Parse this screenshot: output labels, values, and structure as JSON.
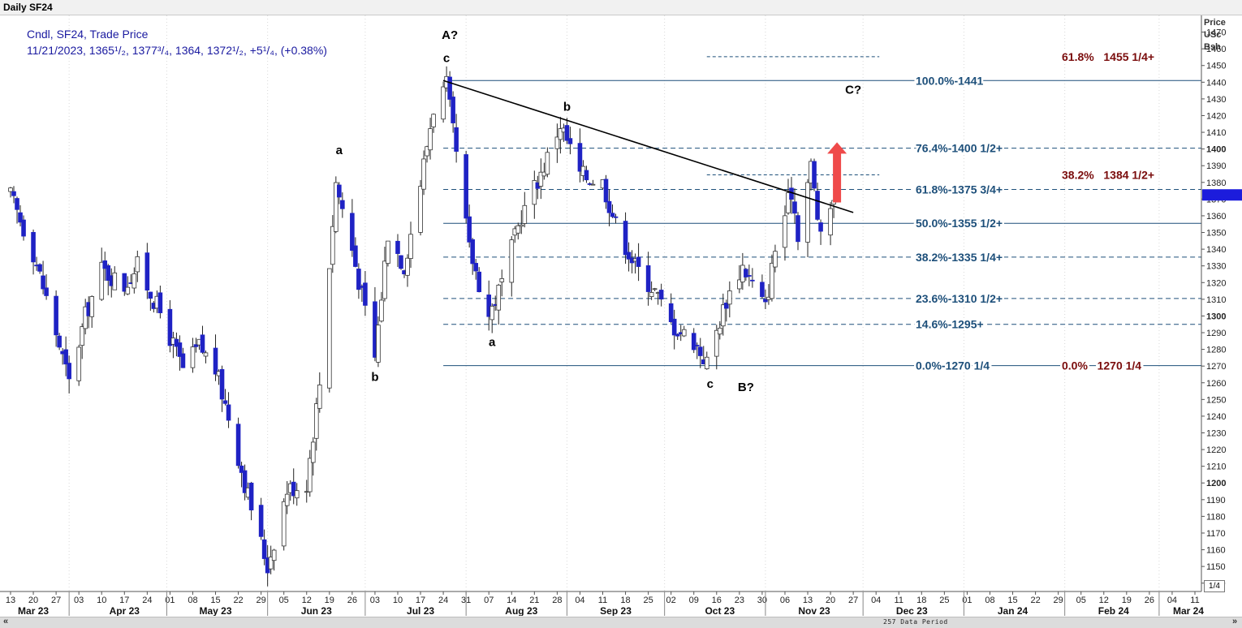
{
  "window": {
    "title": "Daily SF24"
  },
  "footer": {
    "period_label": "257 Data Period",
    "scroll_left": "«",
    "scroll_right": "»",
    "zoom": "1/4"
  },
  "colors": {
    "up_candle": "#ffffff",
    "down_candle": "#1f22c4",
    "fib_line": "#1d4f7a",
    "ext_label": "#7a0c0c",
    "arrow": "#ef4a4a",
    "price_tag": "#1c1cdc"
  },
  "chart_data": {
    "type": "candlestick",
    "legend": {
      "line1": "Cndl, SF24, Trade Price",
      "line2": "11/21/2023, 1365¹/₂, 1377³/₄, 1364, 1372¹/₂, +5¹/₄, (+0.38%)"
    },
    "y_axis": {
      "title": [
        "Price",
        "USc",
        "Bsh"
      ],
      "min": 1135,
      "max": 1480,
      "tick_start": 1140,
      "tick_end": 1470,
      "tick_step": 10,
      "bold_ticks": [
        1200,
        1300,
        1400
      ],
      "last_price_tag": 1372.5
    },
    "x_axis": {
      "start": "2023-03-13",
      "end": "2024-03-11",
      "day_ticks": [
        "13",
        "20",
        "27",
        "03",
        "10",
        "17",
        "24",
        "01",
        "08",
        "15",
        "22",
        "29",
        "05",
        "12",
        "19",
        "26",
        "03",
        "10",
        "17",
        "24",
        "31",
        "07",
        "14",
        "21",
        "28",
        "04",
        "11",
        "18",
        "25",
        "02",
        "09",
        "16",
        "23",
        "30",
        "06",
        "13",
        "20",
        "27",
        "04",
        "11",
        "18",
        "25",
        "01",
        "08",
        "15",
        "22",
        "29",
        "05",
        "12",
        "19",
        "26",
        "04",
        "11"
      ],
      "month_labels": [
        {
          "label": "Mar 23",
          "date": "2023-03-20"
        },
        {
          "label": "Apr 23",
          "date": "2023-04-17"
        },
        {
          "label": "May 23",
          "date": "2023-05-15"
        },
        {
          "label": "Jun 23",
          "date": "2023-06-15"
        },
        {
          "label": "Jul 23",
          "date": "2023-07-17"
        },
        {
          "label": "Aug 23",
          "date": "2023-08-17"
        },
        {
          "label": "Sep 23",
          "date": "2023-09-15"
        },
        {
          "label": "Oct 23",
          "date": "2023-10-17"
        },
        {
          "label": "Nov 23",
          "date": "2023-11-15"
        },
        {
          "label": "Dec 23",
          "date": "2023-12-15"
        },
        {
          "label": "Jan 24",
          "date": "2024-01-15"
        },
        {
          "label": "Feb 24",
          "date": "2024-02-15"
        },
        {
          "label": "Mar 24",
          "date": "2024-03-09"
        }
      ],
      "month_separators": [
        "2023-03-31",
        "2023-04-30",
        "2023-05-31",
        "2023-06-30",
        "2023-07-31",
        "2023-08-31",
        "2023-09-30",
        "2023-10-31",
        "2023-11-30",
        "2023-12-31",
        "2024-01-31",
        "2024-02-29"
      ]
    },
    "price_path": [
      {
        "date": "2023-03-13",
        "p": 1372
      },
      {
        "date": "2023-03-20",
        "p": 1338
      },
      {
        "date": "2023-03-27",
        "p": 1290
      },
      {
        "date": "2023-03-31",
        "p": 1260
      },
      {
        "date": "2023-04-05",
        "p": 1300
      },
      {
        "date": "2023-04-10",
        "p": 1328
      },
      {
        "date": "2023-04-17",
        "p": 1318
      },
      {
        "date": "2023-04-21",
        "p": 1330
      },
      {
        "date": "2023-04-28",
        "p": 1302
      },
      {
        "date": "2023-05-05",
        "p": 1268
      },
      {
        "date": "2023-05-10",
        "p": 1282
      },
      {
        "date": "2023-05-15",
        "p": 1268
      },
      {
        "date": "2023-05-19",
        "p": 1240
      },
      {
        "date": "2023-05-24",
        "p": 1200
      },
      {
        "date": "2023-05-31",
        "p": 1150
      },
      {
        "date": "2023-06-06",
        "p": 1196
      },
      {
        "date": "2023-06-12",
        "p": 1200
      },
      {
        "date": "2023-06-16",
        "p": 1260
      },
      {
        "date": "2023-06-21",
        "p": 1380
      },
      {
        "date": "2023-06-26",
        "p": 1340
      },
      {
        "date": "2023-07-03",
        "p": 1275
      },
      {
        "date": "2023-07-07",
        "p": 1350
      },
      {
        "date": "2023-07-12",
        "p": 1330
      },
      {
        "date": "2023-07-17",
        "p": 1380
      },
      {
        "date": "2023-07-21",
        "p": 1425
      },
      {
        "date": "2023-07-25",
        "p": 1438
      },
      {
        "date": "2023-08-01",
        "p": 1340
      },
      {
        "date": "2023-08-07",
        "p": 1300
      },
      {
        "date": "2023-08-11",
        "p": 1320
      },
      {
        "date": "2023-08-17",
        "p": 1360
      },
      {
        "date": "2023-08-24",
        "p": 1390
      },
      {
        "date": "2023-08-29",
        "p": 1415
      },
      {
        "date": "2023-09-04",
        "p": 1385
      },
      {
        "date": "2023-09-11",
        "p": 1380
      },
      {
        "date": "2023-09-15",
        "p": 1355
      },
      {
        "date": "2023-09-21",
        "p": 1330
      },
      {
        "date": "2023-09-27",
        "p": 1315
      },
      {
        "date": "2023-10-02",
        "p": 1295
      },
      {
        "date": "2023-10-09",
        "p": 1285
      },
      {
        "date": "2023-10-13",
        "p": 1272
      },
      {
        "date": "2023-10-19",
        "p": 1310
      },
      {
        "date": "2023-10-24",
        "p": 1330
      },
      {
        "date": "2023-10-31",
        "p": 1305
      },
      {
        "date": "2023-11-03",
        "p": 1340
      },
      {
        "date": "2023-11-08",
        "p": 1375
      },
      {
        "date": "2023-11-10",
        "p": 1350
      },
      {
        "date": "2023-11-14",
        "p": 1390
      },
      {
        "date": "2023-11-17",
        "p": 1345
      },
      {
        "date": "2023-11-21",
        "p": 1372.5
      }
    ],
    "trendline": {
      "from": {
        "date": "2023-07-24",
        "price": 1441
      },
      "to": {
        "date": "2023-11-27",
        "price": 1362
      }
    },
    "fib_levels": [
      {
        "label": "100.0%-1441",
        "price": 1441,
        "start": "2023-07-24",
        "style": "solid"
      },
      {
        "label": "76.4%-1400 1/2+",
        "price": 1400.5,
        "start": "2023-07-24",
        "style": "dashed"
      },
      {
        "label": "61.8%-1375 3/4+",
        "price": 1375.75,
        "start": "2023-07-24",
        "style": "dashed"
      },
      {
        "label": "50.0%-1355 1/2+",
        "price": 1355.5,
        "start": "2023-07-24",
        "style": "solid"
      },
      {
        "label": "38.2%-1335 1/4+",
        "price": 1335.25,
        "start": "2023-07-24",
        "style": "dashed"
      },
      {
        "label": "23.6%-1310 1/2+",
        "price": 1310.5,
        "start": "2023-07-24",
        "style": "dashed"
      },
      {
        "label": "14.6%-1295+",
        "price": 1295,
        "start": "2023-07-24",
        "style": "dashed"
      },
      {
        "label": "0.0%-1270 1/4",
        "price": 1270.25,
        "start": "2023-07-24",
        "style": "solid"
      }
    ],
    "ext_levels": [
      {
        "label": "61.8%   1455 1/4+",
        "price": 1455.25,
        "start": "2023-10-13",
        "end": "2023-12-05",
        "style": "dashed"
      },
      {
        "label": "38.2%   1384 1/2+",
        "price": 1384.5,
        "start": "2023-10-13",
        "end": "2023-12-05",
        "style": "dashed"
      },
      {
        "label": "0.0%   1270 1/4",
        "price": 1270.25,
        "start": "2023-12-05",
        "end": "2023-12-05",
        "style": "none"
      }
    ],
    "wave_labels": [
      {
        "text": "A?",
        "date": "2023-07-26",
        "price": 1466
      },
      {
        "text": "c",
        "date": "2023-07-25",
        "price": 1452
      },
      {
        "text": "b",
        "date": "2023-08-31",
        "price": 1423
      },
      {
        "text": "a",
        "date": "2023-06-22",
        "price": 1397
      },
      {
        "text": "b",
        "date": "2023-07-03",
        "price": 1261
      },
      {
        "text": "a",
        "date": "2023-08-08",
        "price": 1282
      },
      {
        "text": "c",
        "date": "2023-10-14",
        "price": 1257
      },
      {
        "text": "B?",
        "date": "2023-10-25",
        "price": 1255
      },
      {
        "text": "C?",
        "date": "2023-11-27",
        "price": 1433
      }
    ],
    "arrow": {
      "date": "2023-11-22",
      "from_price": 1368,
      "to_price": 1404
    }
  }
}
